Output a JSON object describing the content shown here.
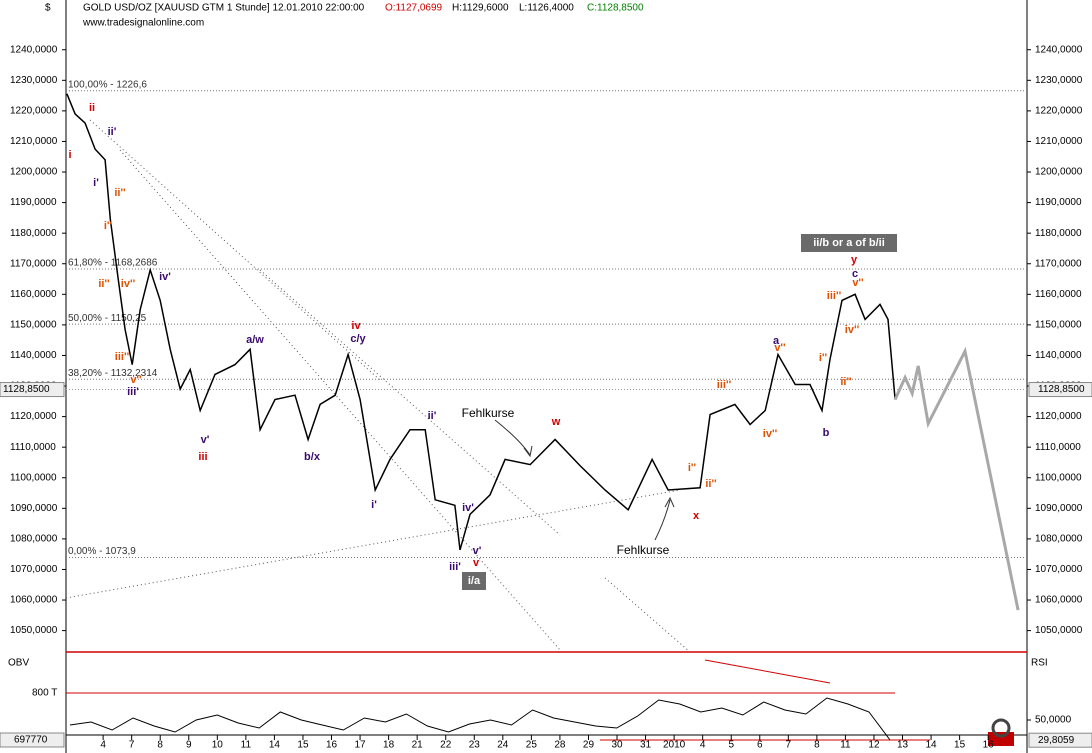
{
  "chart_data": {
    "type": "line",
    "title": "GOLD USD/OZ [XAUUSD GTM  1 Stunde] 12.01.2010 22:00:00",
    "open": "O:1127,0699",
    "high": "H:1129,6000",
    "low": "L:1126,4000",
    "close": "C:1128,8500",
    "source": "www.tradesignalonline.com",
    "ylabel": "$",
    "ylim": [
      1043,
      1253
    ],
    "yticks": [
      {
        "value": 1050,
        "label": "1050,0000"
      },
      {
        "value": 1060,
        "label": "1060,0000"
      },
      {
        "value": 1070,
        "label": "1070,0000"
      },
      {
        "value": 1080,
        "label": "1080,0000"
      },
      {
        "value": 1090,
        "label": "1090,0000"
      },
      {
        "value": 1100,
        "label": "1100,0000"
      },
      {
        "value": 1110,
        "label": "1110,0000"
      },
      {
        "value": 1120,
        "label": "1120,0000"
      },
      {
        "value": 1130,
        "label": "1130,0000"
      },
      {
        "value": 1140,
        "label": "1140,0000"
      },
      {
        "value": 1150,
        "label": "1150,0000"
      },
      {
        "value": 1160,
        "label": "1160,0000"
      },
      {
        "value": 1170,
        "label": "1170,0000"
      },
      {
        "value": 1180,
        "label": "1180,0000"
      },
      {
        "value": 1190,
        "label": "1190,0000"
      },
      {
        "value": 1200,
        "label": "1200,0000"
      },
      {
        "value": 1210,
        "label": "1210,0000"
      },
      {
        "value": 1220,
        "label": "1220,0000"
      },
      {
        "value": 1230,
        "label": "1230,0000"
      },
      {
        "value": 1240,
        "label": "1240,0000"
      }
    ],
    "xlim": [
      -1.3,
      32.36
    ],
    "xticks": [
      {
        "value": 0,
        "label": "4"
      },
      {
        "value": 1,
        "label": "7"
      },
      {
        "value": 2,
        "label": "8"
      },
      {
        "value": 3,
        "label": "9"
      },
      {
        "value": 4,
        "label": "10"
      },
      {
        "value": 5,
        "label": "11"
      },
      {
        "value": 6,
        "label": "14"
      },
      {
        "value": 7,
        "label": "15"
      },
      {
        "value": 8,
        "label": "16"
      },
      {
        "value": 9,
        "label": "17"
      },
      {
        "value": 10,
        "label": "18"
      },
      {
        "value": 11,
        "label": "21"
      },
      {
        "value": 12,
        "label": "22"
      },
      {
        "value": 13,
        "label": "23"
      },
      {
        "value": 14,
        "label": "24"
      },
      {
        "value": 15,
        "label": "25"
      },
      {
        "value": 16,
        "label": "28"
      },
      {
        "value": 17,
        "label": "29"
      },
      {
        "value": 18,
        "label": "30"
      },
      {
        "value": 19,
        "label": "31"
      },
      {
        "value": 20,
        "label": "2010"
      },
      {
        "value": 21,
        "label": "4"
      },
      {
        "value": 22,
        "label": "5"
      },
      {
        "value": 23,
        "label": "6"
      },
      {
        "value": 24,
        "label": "7"
      },
      {
        "value": 25,
        "label": "8"
      },
      {
        "value": 26,
        "label": "11"
      },
      {
        "value": 27,
        "label": "12"
      },
      {
        "value": 28,
        "label": "13"
      },
      {
        "value": 29,
        "label": "14"
      },
      {
        "value": 30,
        "label": "15"
      },
      {
        "value": 31,
        "label": "16"
      }
    ],
    "series": [
      {
        "name": "GOLD USD/OZ",
        "color": "#000000",
        "x": [
          -1.27,
          -0.98,
          -0.63,
          -0.28,
          0.07,
          0.25,
          0.53,
          0.77,
          1.02,
          1.3,
          1.65,
          2.0,
          2.35,
          2.7,
          3.05,
          3.4,
          3.92,
          4.62,
          5.15,
          5.5,
          6.02,
          6.72,
          7.18,
          7.6,
          8.13,
          8.58,
          9.0,
          9.53,
          10.05,
          10.75,
          11.28,
          11.63,
          12.32,
          12.5,
          12.85,
          13.55,
          14.08,
          14.96,
          15.83,
          16.7,
          17.58,
          18.39,
          19.23,
          19.79,
          20.91,
          21.26,
          22.13,
          22.66,
          23.19,
          23.64,
          24.24,
          24.76,
          25.18,
          25.46,
          25.88,
          26.34,
          26.69,
          27.21,
          27.49,
          27.74
        ],
        "values": [
          1225.6,
          1219,
          1216,
          1207.5,
          1204,
          1184.6,
          1165,
          1148.5,
          1137,
          1155,
          1168,
          1158,
          1142,
          1129,
          1135.4,
          1122,
          1133.8,
          1137,
          1142,
          1115.7,
          1125.6,
          1127,
          1112.5,
          1124,
          1127,
          1140.3,
          1125.6,
          1096,
          1106,
          1115.7,
          1115.7,
          1092.8,
          1091,
          1076.4,
          1088,
          1094.4,
          1106,
          1104.3,
          1112.5,
          1104,
          1096,
          1089.5,
          1106,
          1096,
          1096.7,
          1120.7,
          1124,
          1117.4,
          1122,
          1140.3,
          1130.5,
          1130.5,
          1122,
          1138.7,
          1158,
          1160,
          1151.8,
          1156.7,
          1151.8,
          1125.6
        ]
      },
      {
        "name": "Projection",
        "color": "#a8a8a8",
        "x": [
          27.74,
          28.09,
          28.34,
          28.55,
          28.9,
          30.19,
          32.05
        ],
        "values": [
          1125.6,
          1132.8,
          1127.6,
          1136.6,
          1117.7,
          1141.4,
          1056.7
        ]
      }
    ],
    "fib_levels": [
      {
        "value": 1226.6,
        "label": "100,00% - 1226,6"
      },
      {
        "value": 1168.3,
        "label": "61,80% - 1168,2686"
      },
      {
        "value": 1150.25,
        "label": "50,00% - 1150,25"
      },
      {
        "value": 1132.23,
        "label": "38,20% - 1132,2314"
      },
      {
        "value": 1073.9,
        "label": "0,00% - 1073,9"
      }
    ],
    "last_price": {
      "value": 1128.85,
      "label": "1128,8500"
    },
    "annotations": [
      "ii",
      "i",
      "ii'",
      "i'",
      "ii''",
      "i''",
      "ii''",
      "iv''",
      "iv'",
      "iii''",
      "v''",
      "iii'",
      "v'",
      "iii",
      "a/w",
      "b/x",
      "iv",
      "c/y",
      "i'",
      "ii'",
      "iv'",
      "v'",
      "v",
      "iii'",
      "i/a",
      "Fehlkurse",
      "Fehlkurse",
      "w",
      "x",
      "i''",
      "ii''",
      "iii''",
      "a",
      "v''",
      "iv''",
      "b",
      "i''",
      "ii''",
      "iii''",
      "iv''",
      "v''",
      "c",
      "y",
      "ii/b or a of b/ii"
    ],
    "lower_panel": {
      "left_label": "OBV",
      "right_label": "RSI",
      "obv_level": "800 T",
      "obv_value": "697770",
      "ylim": [
        18,
        114
      ],
      "yticks": [
        {
          "value": 50,
          "label": "50,0000"
        }
      ],
      "last_value": {
        "value": 29.8059,
        "label": "29,8059"
      },
      "values": [
        45,
        48,
        40,
        52,
        44,
        38,
        50,
        55,
        47,
        42,
        58,
        50,
        45,
        40,
        52,
        48,
        56,
        44,
        38,
        46,
        50,
        45,
        60,
        52,
        48,
        44,
        42,
        54,
        70,
        66,
        58,
        62,
        55,
        68,
        60,
        56,
        72,
        66,
        58,
        30
      ]
    }
  }
}
